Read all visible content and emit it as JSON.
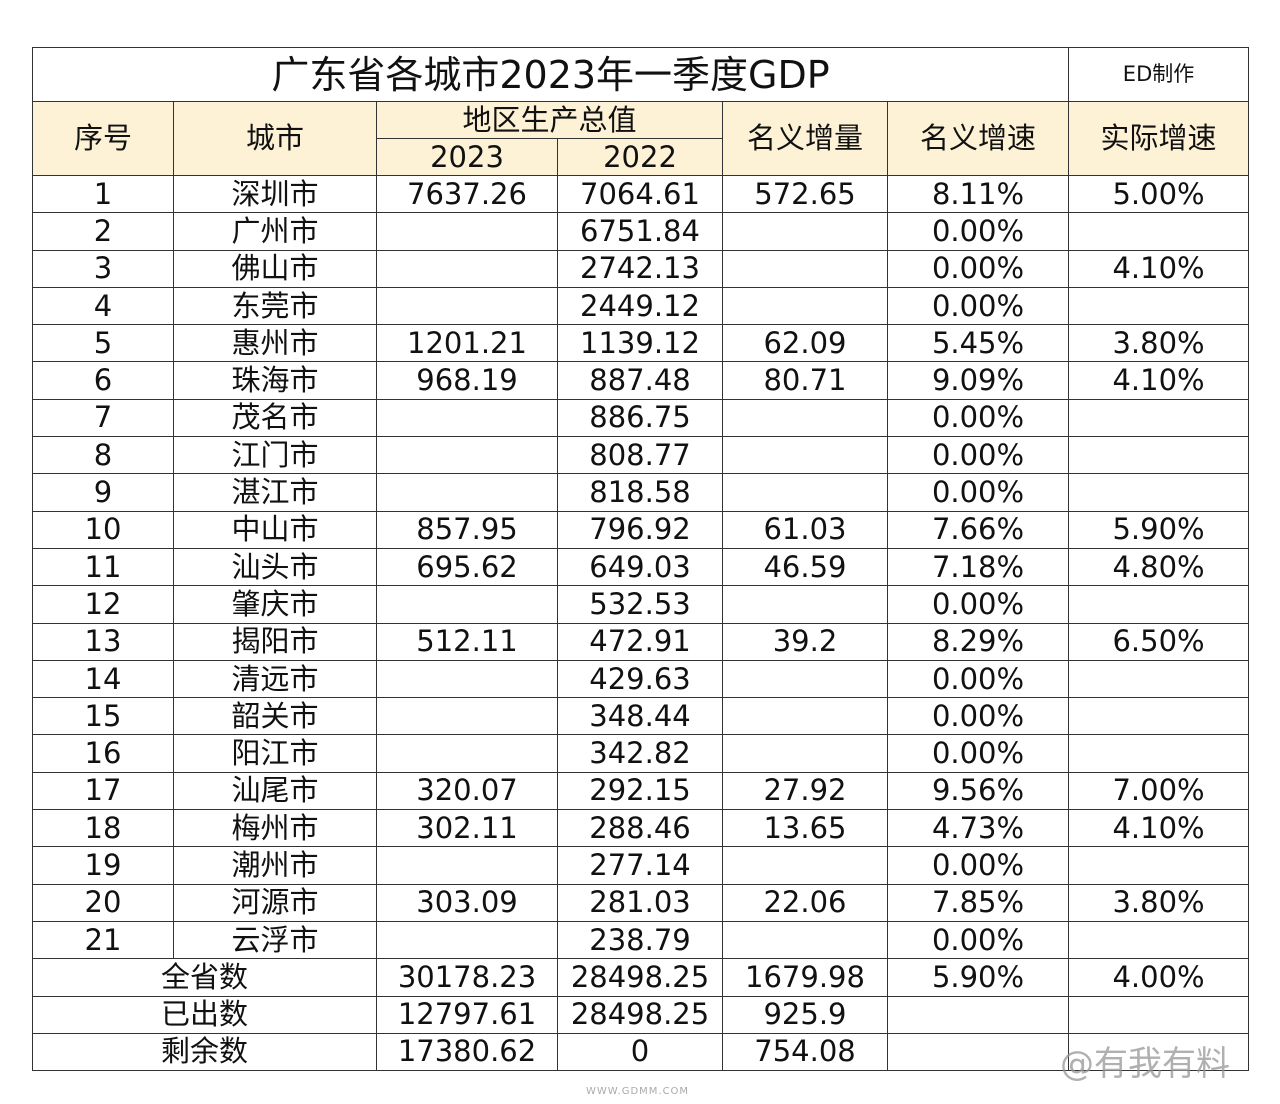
{
  "title": "广东省各城市2023年一季度GDP",
  "maker": "ED制作",
  "headers": {
    "no": "序号",
    "city": "城市",
    "gdp": "地区生产总值",
    "gdp_years": [
      "2023",
      "2022"
    ],
    "increment": "名义增量",
    "nominal_rate": "名义增速",
    "real_rate": "实际增速"
  },
  "rows": [
    [
      "1",
      "深圳市",
      "7637.26",
      "7064.61",
      "572.65",
      "8.11%",
      "5.00%"
    ],
    [
      "2",
      "广州市",
      null,
      "6751.84",
      null,
      "0.00%",
      null
    ],
    [
      "3",
      "佛山市",
      null,
      "2742.13",
      null,
      "0.00%",
      "4.10%"
    ],
    [
      "4",
      "东莞市",
      null,
      "2449.12",
      null,
      "0.00%",
      null
    ],
    [
      "5",
      "惠州市",
      "1201.21",
      "1139.12",
      "62.09",
      "5.45%",
      "3.80%"
    ],
    [
      "6",
      "珠海市",
      "968.19",
      "887.48",
      "80.71",
      "9.09%",
      "4.10%"
    ],
    [
      "7",
      "茂名市",
      null,
      "886.75",
      null,
      "0.00%",
      null
    ],
    [
      "8",
      "江门市",
      null,
      "808.77",
      null,
      "0.00%",
      null
    ],
    [
      "9",
      "湛江市",
      null,
      "818.58",
      null,
      "0.00%",
      null
    ],
    [
      "10",
      "中山市",
      "857.95",
      "796.92",
      "61.03",
      "7.66%",
      "5.90%"
    ],
    [
      "11",
      "汕头市",
      "695.62",
      "649.03",
      "46.59",
      "7.18%",
      "4.80%"
    ],
    [
      "12",
      "肇庆市",
      null,
      "532.53",
      null,
      "0.00%",
      null
    ],
    [
      "13",
      "揭阳市",
      "512.11",
      "472.91",
      "39.2",
      "8.29%",
      "6.50%"
    ],
    [
      "14",
      "清远市",
      null,
      "429.63",
      null,
      "0.00%",
      null
    ],
    [
      "15",
      "韶关市",
      null,
      "348.44",
      null,
      "0.00%",
      null
    ],
    [
      "16",
      "阳江市",
      null,
      "342.82",
      null,
      "0.00%",
      null
    ],
    [
      "17",
      "汕尾市",
      "320.07",
      "292.15",
      "27.92",
      "9.56%",
      "7.00%"
    ],
    [
      "18",
      "梅州市",
      "302.11",
      "288.46",
      "13.65",
      "4.73%",
      "4.10%"
    ],
    [
      "19",
      "潮州市",
      null,
      "277.14",
      null,
      "0.00%",
      null
    ],
    [
      "20",
      "河源市",
      "303.09",
      "281.03",
      "22.06",
      "7.85%",
      "3.80%"
    ],
    [
      "21",
      "云浮市",
      null,
      "238.79",
      null,
      "0.00%",
      null
    ]
  ],
  "summary": [
    [
      "全省数",
      "30178.23",
      "28498.25",
      "1679.98",
      "5.90%",
      "4.00%"
    ],
    [
      "已出数",
      "12797.61",
      "28498.25",
      "925.9",
      null,
      null
    ],
    [
      "剩余数",
      "17380.62",
      "0",
      "754.08",
      null,
      null
    ]
  ],
  "watermark": "@有我有料",
  "logo": "WWW.GDMM.COM"
}
